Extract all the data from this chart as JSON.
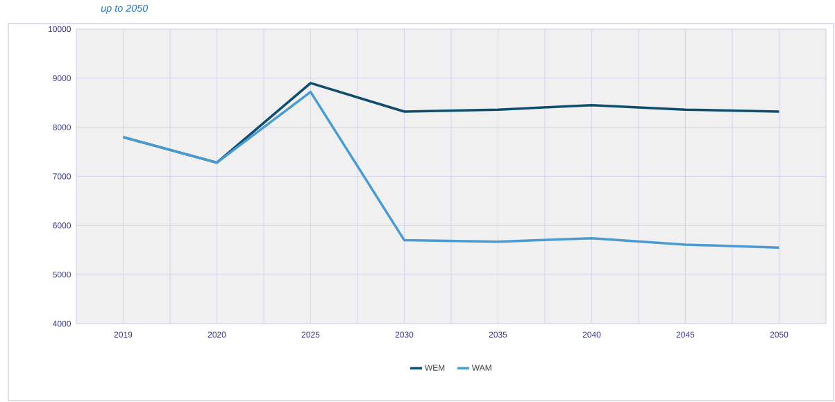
{
  "chart_data": {
    "type": "line",
    "title": "up to 2050",
    "categories": [
      "2019",
      "2020",
      "2025",
      "2030",
      "2035",
      "2040",
      "2045",
      "2050"
    ],
    "series": [
      {
        "name": "WEM",
        "color": "#0e4d6e",
        "values": [
          7800,
          7280,
          8900,
          8320,
          8360,
          8450,
          8360,
          8320
        ]
      },
      {
        "name": "WAM",
        "color": "#4a9bd1",
        "values": [
          7800,
          7280,
          8720,
          5700,
          5670,
          5740,
          5610,
          5550
        ]
      }
    ],
    "ylim": [
      4000,
      10000
    ],
    "yticks": [
      4000,
      5000,
      6000,
      7000,
      8000,
      9000,
      10000
    ],
    "grid": true,
    "legend": "bottom",
    "marker": "none",
    "line_style": "solid"
  }
}
